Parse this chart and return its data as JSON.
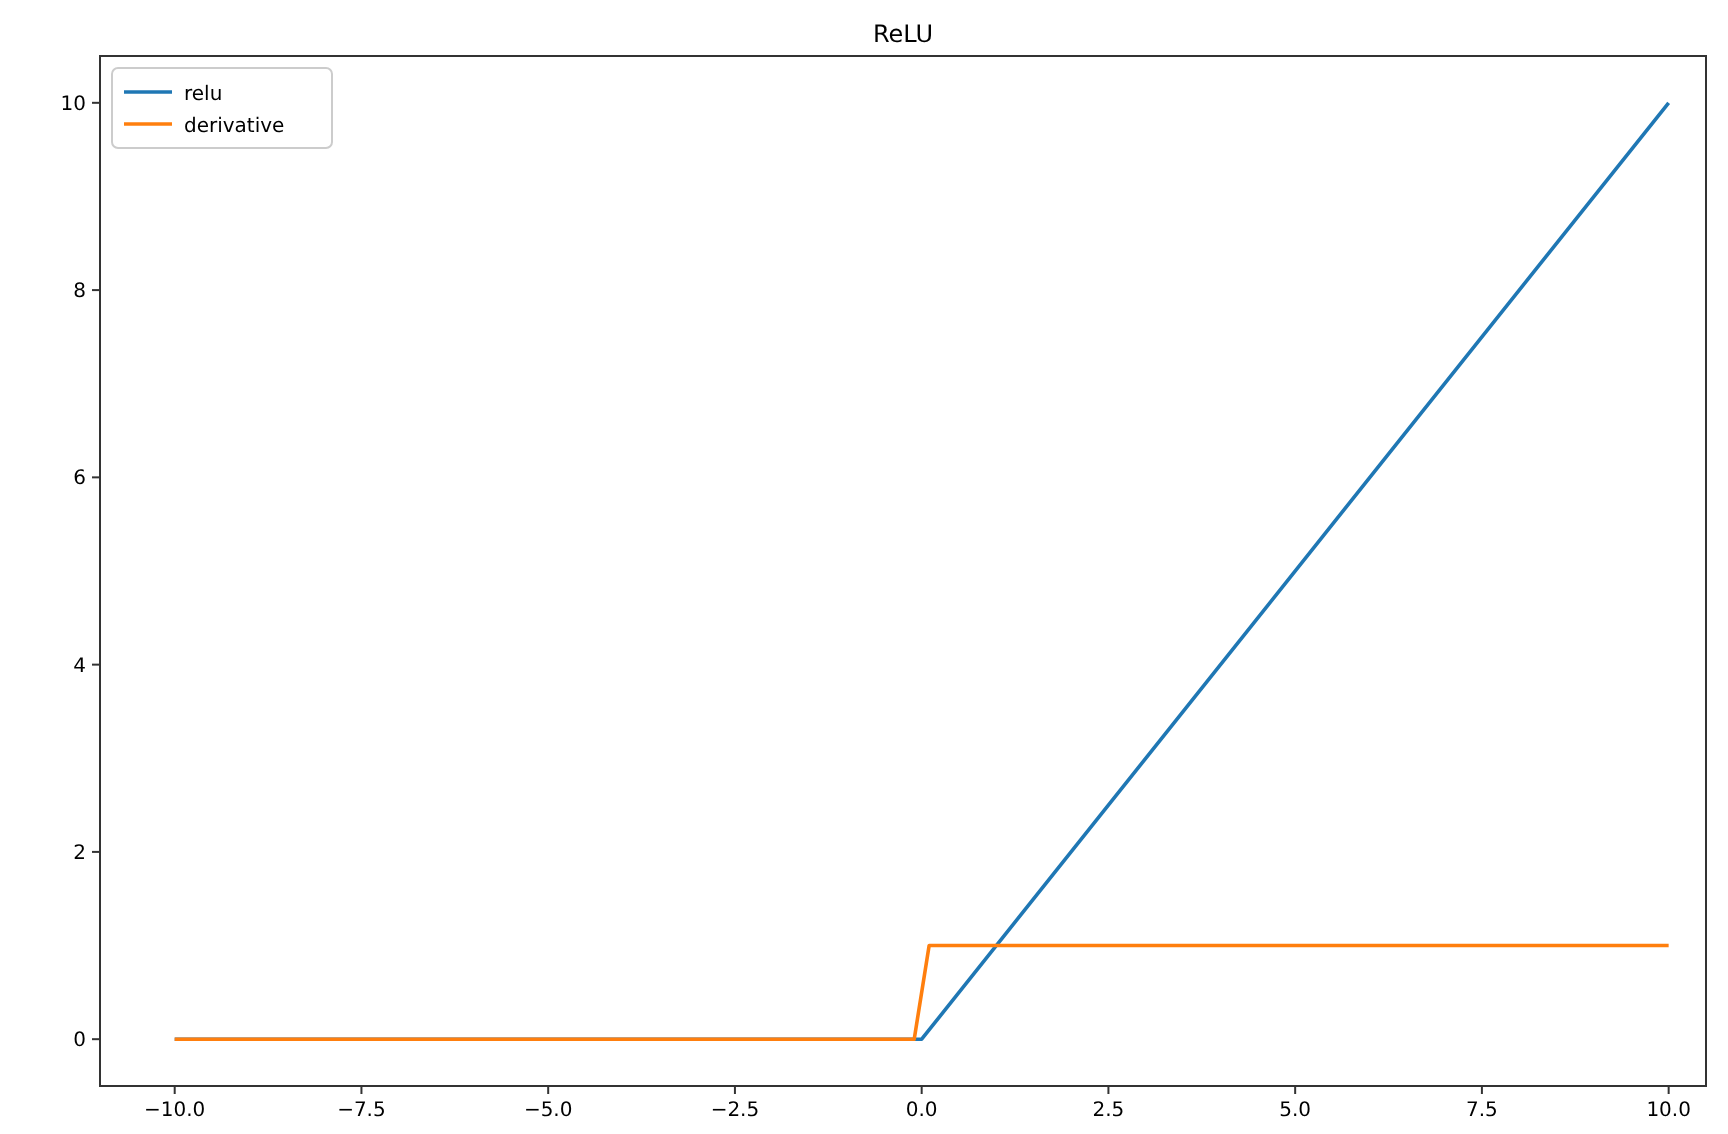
{
  "chart_data": {
    "type": "line",
    "title": "ReLU",
    "xlim": [
      -11,
      10.5
    ],
    "ylim": [
      -0.5,
      10.5
    ],
    "xticks": [
      {
        "value": -10,
        "label": "−10.0"
      },
      {
        "value": -7.5,
        "label": "−7.5"
      },
      {
        "value": -5,
        "label": "−5.0"
      },
      {
        "value": -2.5,
        "label": "−2.5"
      },
      {
        "value": 0,
        "label": "0.0"
      },
      {
        "value": 2.5,
        "label": "2.5"
      },
      {
        "value": 5,
        "label": "5.0"
      },
      {
        "value": 7.5,
        "label": "7.5"
      },
      {
        "value": 10,
        "label": "10.0"
      }
    ],
    "yticks": [
      0,
      2,
      4,
      6,
      8,
      10
    ],
    "grid": false,
    "legend": "top left",
    "line_style": "solid",
    "series": [
      {
        "name": "relu",
        "color": "#1f77b4",
        "x": [
          -10,
          -0.1,
          0,
          10
        ],
        "values": [
          0,
          0,
          0,
          10
        ]
      },
      {
        "name": "derivative",
        "color": "#ff7f0e",
        "x": [
          -10,
          -0.1,
          0.1,
          10
        ],
        "values": [
          0,
          0,
          1,
          1
        ]
      }
    ]
  }
}
